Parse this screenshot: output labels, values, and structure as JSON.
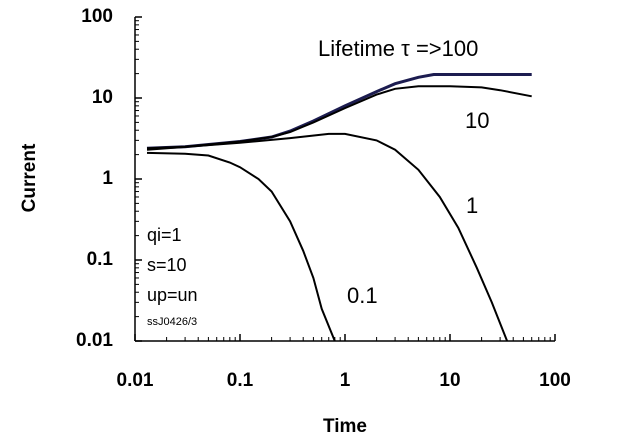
{
  "chart_data": {
    "type": "line",
    "x_label": "Time",
    "y_label": "Current",
    "log_x": true,
    "log_y": true,
    "xlim": [
      0.01,
      100
    ],
    "ylim": [
      0.01,
      100
    ],
    "xticks": [
      0.01,
      0.1,
      1,
      10,
      100
    ],
    "yticks": [
      0.01,
      0.1,
      1,
      10,
      100
    ],
    "series": [
      {
        "name": "Lifetime τ =>100",
        "color": "#1c1c50",
        "x": [
          0.013,
          0.03,
          0.1,
          0.2,
          0.3,
          0.5,
          1,
          2,
          3,
          5,
          7,
          10,
          30,
          60
        ],
        "values": [
          2.4,
          2.5,
          2.9,
          3.3,
          3.9,
          5.2,
          8,
          12,
          15,
          18,
          19.5,
          19.5,
          19.5,
          19.5
        ]
      },
      {
        "name": "10",
        "color": "#000000",
        "x": [
          0.013,
          0.03,
          0.1,
          0.2,
          0.3,
          0.5,
          1,
          2,
          3,
          5,
          10,
          20,
          30,
          60
        ],
        "values": [
          2.4,
          2.5,
          2.9,
          3.3,
          3.8,
          5,
          7.5,
          11,
          13,
          14,
          14,
          13.5,
          12.5,
          10.5
        ]
      },
      {
        "name": "1",
        "color": "#000000",
        "x": [
          0.013,
          0.1,
          0.3,
          0.7,
          1,
          2,
          3,
          5,
          8,
          12,
          18,
          25,
          35
        ],
        "values": [
          2.3,
          2.8,
          3.2,
          3.6,
          3.6,
          3.0,
          2.3,
          1.3,
          0.6,
          0.25,
          0.08,
          0.03,
          0.01
        ]
      },
      {
        "name": "0.1",
        "color": "#000000",
        "x": [
          0.013,
          0.03,
          0.05,
          0.08,
          0.1,
          0.15,
          0.2,
          0.3,
          0.4,
          0.5,
          0.6,
          0.8
        ],
        "values": [
          2.1,
          2.05,
          1.95,
          1.6,
          1.4,
          1.0,
          0.7,
          0.3,
          0.13,
          0.06,
          0.025,
          0.01
        ]
      }
    ],
    "annotations": [
      "qi=1",
      "s=10",
      "up=un",
      "ssJ0426/3"
    ]
  }
}
